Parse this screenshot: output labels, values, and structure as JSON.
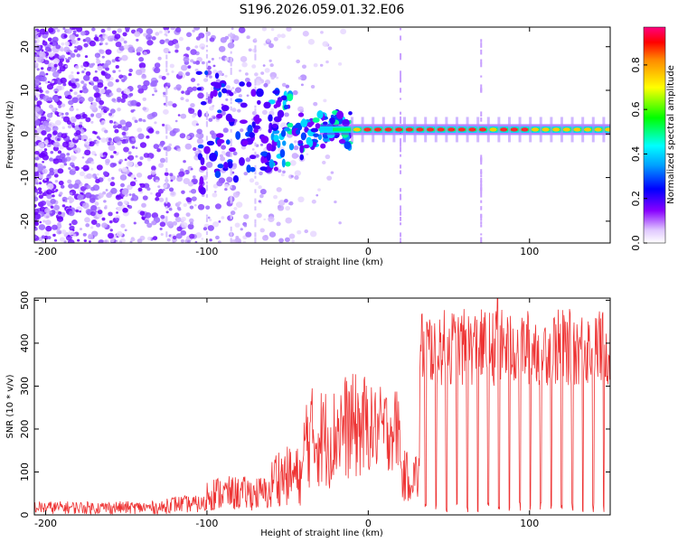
{
  "title": "S196.2026.059.01.32.E06",
  "chart_data": [
    {
      "type": "heatmap",
      "name": "spectrogram",
      "xlabel": "Height of straight line (km)",
      "ylabel": "Frequency (Hz)",
      "xlim": [
        -207,
        150
      ],
      "ylim": [
        -25,
        24.5
      ],
      "xticks": [
        -200,
        -100,
        0,
        100
      ],
      "yticks": [
        -20,
        -10,
        0,
        10,
        20
      ],
      "colorbar": {
        "label": "Normalized spectral amplitude",
        "range": [
          0,
          0.97
        ],
        "ticks": [
          0.0,
          0.2,
          0.4,
          0.6,
          0.8
        ],
        "tick_labels": [
          "0.0",
          "0.2",
          "0.4",
          "0.6",
          "0.8"
        ]
      },
      "features": {
        "noise_region_x": [
          -207,
          -55
        ],
        "signal_center_hz": 1,
        "signal_start_x": -30,
        "vertical_artifact_x": [
          -125,
          -100,
          -85,
          -70,
          20,
          70
        ]
      }
    },
    {
      "type": "line",
      "name": "snr",
      "xlabel": "Height of straight line (km)",
      "ylabel": "SNR (10 * v/v)",
      "xlim": [
        -207,
        150
      ],
      "ylim": [
        0,
        505
      ],
      "xticks": [
        -200,
        -100,
        0,
        100
      ],
      "yticks": [
        0,
        100,
        200,
        300,
        400,
        500
      ],
      "color": "#ee3333",
      "segments": [
        {
          "x0": -207,
          "x1": -125,
          "low": 2,
          "high": 32
        },
        {
          "x0": -125,
          "x1": -100,
          "low": 5,
          "high": 45
        },
        {
          "x0": -100,
          "x1": -60,
          "low": 10,
          "high": 90
        },
        {
          "x0": -60,
          "x1": -40,
          "low": 20,
          "high": 160
        },
        {
          "x0": -40,
          "x1": -20,
          "low": 60,
          "high": 300
        },
        {
          "x0": -20,
          "x1": 0,
          "low": 80,
          "high": 330
        },
        {
          "x0": 0,
          "x1": 20,
          "low": 100,
          "high": 300
        },
        {
          "x0": 20,
          "x1": 32,
          "low": 30,
          "high": 150
        },
        {
          "x0": 32,
          "x1": 150,
          "low": 300,
          "high": 480
        }
      ],
      "peak": {
        "x": 80,
        "y": 505
      },
      "dip_spacing_km": 6.5,
      "dip_start_x": 35
    }
  ]
}
